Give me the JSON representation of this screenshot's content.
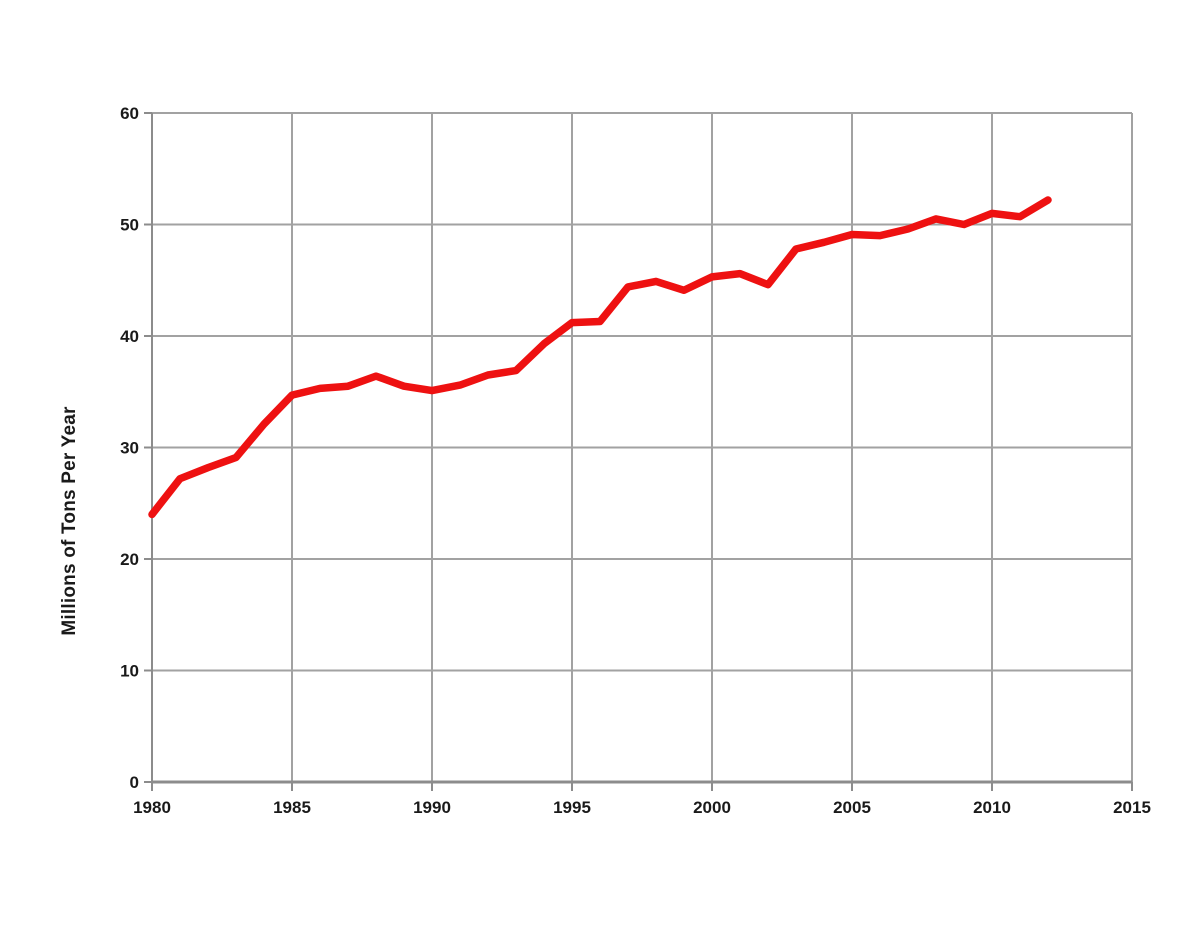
{
  "chart_data": {
    "type": "line",
    "title": "",
    "xlabel": "",
    "ylabel": "Millions of Tons Per Year",
    "xlim": [
      1980,
      2015
    ],
    "ylim": [
      0,
      60
    ],
    "x_ticks": [
      1980,
      1985,
      1990,
      1995,
      2000,
      2005,
      2010,
      2015
    ],
    "y_ticks": [
      0,
      10,
      20,
      30,
      40,
      50,
      60
    ],
    "grid": true,
    "legend_position": "none",
    "x": [
      1980,
      1981,
      1982,
      1983,
      1984,
      1985,
      1986,
      1987,
      1988,
      1989,
      1990,
      1991,
      1992,
      1993,
      1994,
      1995,
      1996,
      1997,
      1998,
      1999,
      2000,
      2001,
      2002,
      2003,
      2004,
      2005,
      2006,
      2007,
      2008,
      2009,
      2010,
      2011,
      2012
    ],
    "series": [
      {
        "name": "Millions of Tons Per Year",
        "values": [
          24.0,
          27.2,
          28.2,
          29.1,
          32.1,
          34.7,
          35.3,
          35.5,
          36.4,
          35.5,
          35.1,
          35.6,
          36.5,
          36.9,
          39.3,
          41.2,
          41.3,
          44.4,
          44.9,
          44.1,
          45.3,
          45.6,
          44.6,
          47.8,
          48.4,
          49.1,
          49.0,
          49.6,
          50.5,
          50.0,
          51.0,
          50.7,
          52.2
        ]
      }
    ],
    "colors": {
      "line": "#ee1111",
      "grid": "#a2a2a2",
      "axis": "#8c8c8c",
      "text": "#1a1a1a",
      "background": "#ffffff"
    }
  }
}
